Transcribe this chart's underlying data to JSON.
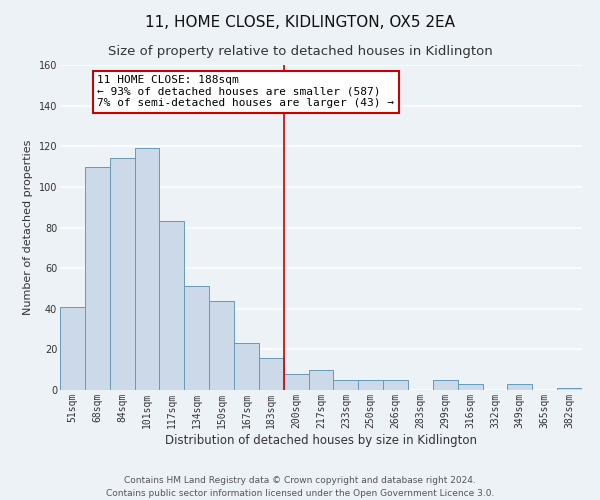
{
  "title": "11, HOME CLOSE, KIDLINGTON, OX5 2EA",
  "subtitle": "Size of property relative to detached houses in Kidlington",
  "xlabel": "Distribution of detached houses by size in Kidlington",
  "ylabel": "Number of detached properties",
  "bar_color": "#ccd9e8",
  "bar_edge_color": "#6699bb",
  "categories": [
    "51sqm",
    "68sqm",
    "84sqm",
    "101sqm",
    "117sqm",
    "134sqm",
    "150sqm",
    "167sqm",
    "183sqm",
    "200sqm",
    "217sqm",
    "233sqm",
    "250sqm",
    "266sqm",
    "283sqm",
    "299sqm",
    "316sqm",
    "332sqm",
    "349sqm",
    "365sqm",
    "382sqm"
  ],
  "values": [
    41,
    110,
    114,
    119,
    83,
    51,
    44,
    23,
    16,
    8,
    10,
    5,
    5,
    5,
    0,
    5,
    3,
    0,
    3,
    0,
    1
  ],
  "ylim": [
    0,
    160
  ],
  "yticks": [
    0,
    20,
    40,
    60,
    80,
    100,
    120,
    140,
    160
  ],
  "property_line_x": 8.5,
  "property_line_color": "#cc0000",
  "annotation_line1": "11 HOME CLOSE: 188sqm",
  "annotation_line2": "← 93% of detached houses are smaller (587)",
  "annotation_line3": "7% of semi-detached houses are larger (43) →",
  "annotation_box_facecolor": "white",
  "annotation_box_edgecolor": "#cc0000",
  "footer_line1": "Contains HM Land Registry data © Crown copyright and database right 2024.",
  "footer_line2": "Contains public sector information licensed under the Open Government Licence 3.0.",
  "background_color": "#edf2f7",
  "grid_color": "white",
  "title_fontsize": 11,
  "subtitle_fontsize": 9.5,
  "xlabel_fontsize": 8.5,
  "ylabel_fontsize": 8,
  "tick_fontsize": 7,
  "footer_fontsize": 6.5,
  "annotation_fontsize": 8
}
